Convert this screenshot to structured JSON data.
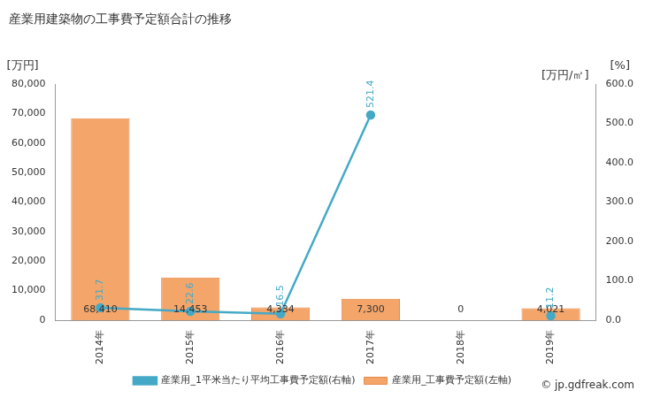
{
  "chart_data": {
    "type": "bar",
    "title": "産業用建築物の工事費予定額合計の推移",
    "categories": [
      "2014年",
      "2015年",
      "2016年",
      "2017年",
      "2018年",
      "2019年"
    ],
    "series": [
      {
        "name": "産業用_工事費予定額(左軸)",
        "type": "bar",
        "color": "#f4a56a",
        "values": [
          68410,
          14453,
          4334,
          7300,
          0,
          4021
        ],
        "value_labels": [
          "68,410",
          "14,453",
          "4,334",
          "7,300",
          "0",
          "4,021"
        ]
      },
      {
        "name": "産業用_1平米当たり平均工事費予定額(右軸)",
        "type": "line",
        "axis": "y2",
        "color": "#44a9c6",
        "marker": "circle",
        "values": [
          31.7,
          22.6,
          16.5,
          521.4,
          null,
          11.2
        ]
      }
    ],
    "ylim": [
      0,
      80000
    ],
    "yticks": [
      0,
      {
        "value": 10000,
        "label": "10,000"
      },
      {
        "value": 20000,
        "label": "20,000"
      },
      {
        "value": 30000,
        "label": "30,000"
      },
      {
        "value": 40000,
        "label": "40,000"
      },
      {
        "value": 50000,
        "label": "50,000"
      },
      {
        "value": 60000,
        "label": "60,000"
      },
      {
        "value": 70000,
        "label": "70,000"
      },
      {
        "value": 80000,
        "label": "80,000"
      }
    ],
    "y2lim": [
      0,
      600
    ],
    "y2ticks": [
      {
        "value": 0,
        "label": "0.0"
      },
      {
        "value": 100,
        "label": "100.0"
      },
      {
        "value": 200,
        "label": "200.0"
      },
      {
        "value": 300,
        "label": "300.0"
      },
      {
        "value": 400,
        "label": "400.0"
      },
      {
        "value": 500,
        "label": "500.0"
      },
      {
        "value": 600,
        "label": "600.0"
      }
    ],
    "ylabel": "[万円]",
    "y2label": "[万円/㎡]",
    "annotations": [
      "[%]",
      "© jp.gdfreak.com"
    ],
    "grid": false,
    "legend": "bottom",
    "data_labels": true
  }
}
